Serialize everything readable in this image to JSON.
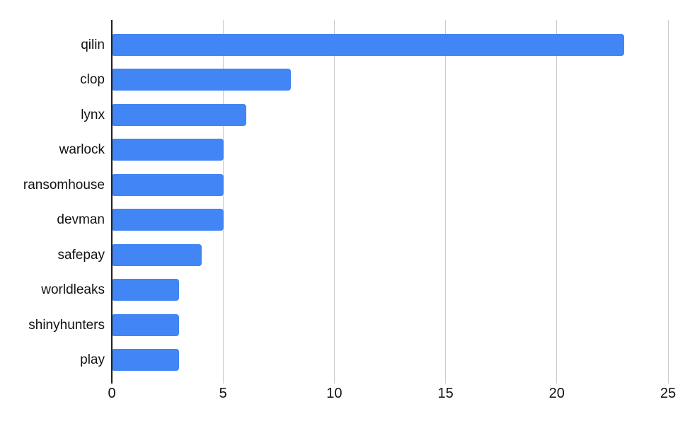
{
  "chart_data": {
    "type": "bar",
    "orientation": "horizontal",
    "title": "",
    "xlabel": "",
    "ylabel": "",
    "categories": [
      "qilin",
      "clop",
      "lynx",
      "warlock",
      "ransomhouse",
      "devman",
      "safepay",
      "worldleaks",
      "shinyhunters",
      "play"
    ],
    "values": [
      23,
      8,
      6,
      5,
      5,
      5,
      4,
      3,
      3,
      3
    ],
    "xlim": [
      0,
      25
    ],
    "xticks": [
      0,
      5,
      10,
      15,
      20,
      25
    ],
    "grid": true,
    "legend": "none",
    "colors": {
      "bar": "#4285f4",
      "gridline": "#cccccc",
      "axis": "#212121",
      "text": "#111111",
      "background": "#ffffff"
    }
  }
}
